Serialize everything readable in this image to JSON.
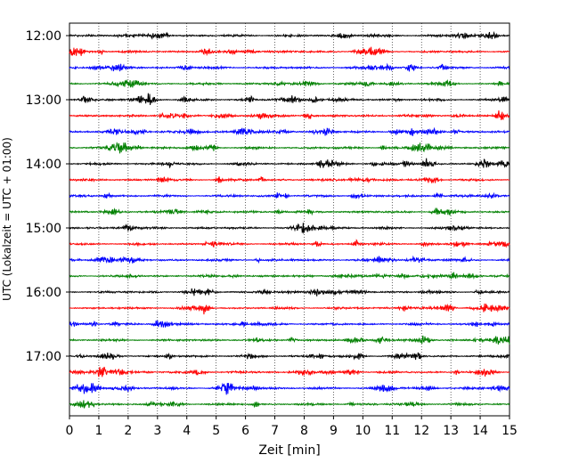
{
  "chart_data": {
    "type": "line",
    "title": "",
    "xlabel": "Zeit  [min]",
    "ylabel": "UTC (Lokalzeit = UTC + 01:00)",
    "xlim": [
      0,
      15
    ],
    "x_ticks": [
      "0",
      "1",
      "2",
      "3",
      "4",
      "5",
      "6",
      "7",
      "8",
      "9",
      "10",
      "11",
      "12",
      "13",
      "14",
      "15"
    ],
    "y_ticks": [
      "12:00",
      "13:00",
      "14:00",
      "15:00",
      "16:00",
      "17:00"
    ],
    "grid": "vertical-dotted",
    "trace_interval_minutes": 15,
    "trace_colors": [
      "#000000",
      "#ff0000",
      "#0000ff",
      "#008000"
    ],
    "traces": [
      {
        "start": "12:00"
      },
      {
        "start": "12:15"
      },
      {
        "start": "12:30"
      },
      {
        "start": "12:45"
      },
      {
        "start": "13:00"
      },
      {
        "start": "13:15"
      },
      {
        "start": "13:30"
      },
      {
        "start": "13:45"
      },
      {
        "start": "14:00"
      },
      {
        "start": "14:15"
      },
      {
        "start": "14:30"
      },
      {
        "start": "14:45"
      },
      {
        "start": "15:00"
      },
      {
        "start": "15:15"
      },
      {
        "start": "15:30"
      },
      {
        "start": "15:45"
      },
      {
        "start": "16:00"
      },
      {
        "start": "16:15"
      },
      {
        "start": "16:30"
      },
      {
        "start": "16:45"
      },
      {
        "start": "17:00"
      },
      {
        "start": "17:15"
      },
      {
        "start": "17:30"
      },
      {
        "start": "17:45"
      }
    ]
  }
}
